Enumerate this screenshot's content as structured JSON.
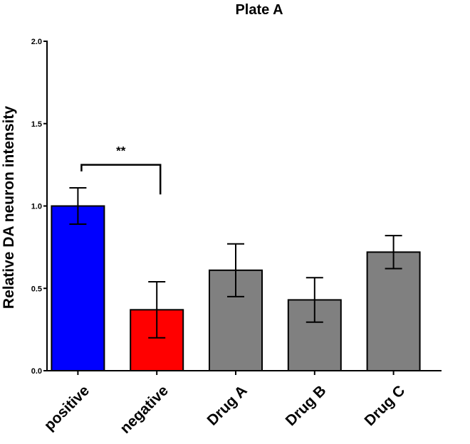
{
  "chart_data": {
    "type": "bar",
    "title": "Plate  A",
    "xlabel": "",
    "ylabel": "Relative DA neuron intensity",
    "ylim": [
      0,
      2.0
    ],
    "yticks": [
      "0.0",
      "0.5",
      "1.0",
      "1.5",
      "2.0"
    ],
    "categories": [
      "positive",
      "negative",
      "Drug A",
      "Drug B",
      "Drug C"
    ],
    "values": [
      1.0,
      0.37,
      0.61,
      0.43,
      0.72
    ],
    "error": [
      0.11,
      0.17,
      0.16,
      0.135,
      0.1
    ],
    "colors": [
      "#0000ff",
      "#ff0000",
      "#808080",
      "#808080",
      "#808080"
    ],
    "grid": false,
    "annotations": [
      {
        "text": "**",
        "between": [
          "positive",
          "negative"
        ]
      }
    ]
  }
}
